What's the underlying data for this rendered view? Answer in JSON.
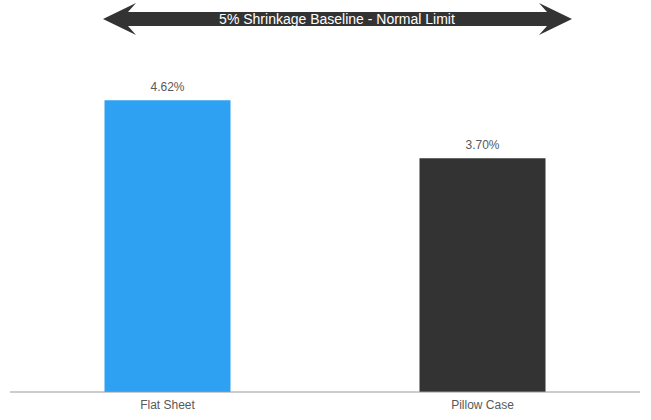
{
  "chart_data": {
    "type": "bar",
    "annotation": "5% Shrinkage Baseline - Normal Limit",
    "categories": [
      "Flat Sheet",
      "Pillow Case"
    ],
    "values": [
      4.62,
      3.7
    ],
    "value_labels": [
      "4.62%",
      "3.70%"
    ],
    "colors": [
      "#2ea1f2",
      "#333333"
    ],
    "ylim": [
      0,
      6
    ],
    "yticks": [
      0,
      6
    ],
    "data_labels": true,
    "tick_labels": "x",
    "grid": false
  }
}
